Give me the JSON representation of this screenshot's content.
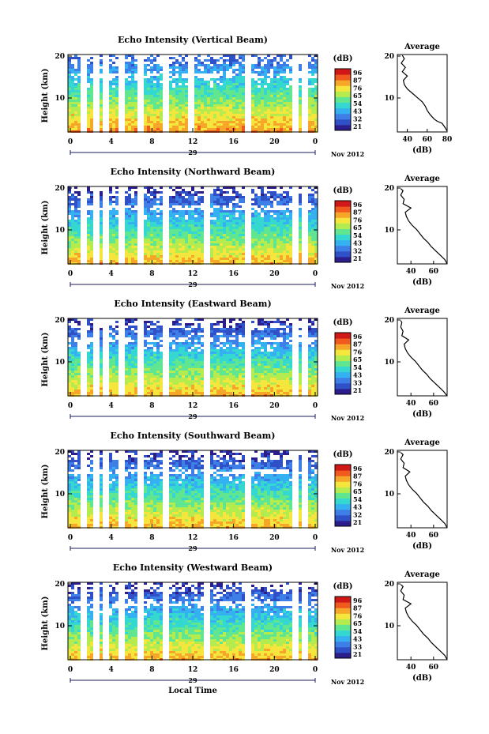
{
  "chart_data": [
    {
      "type": "heatmap",
      "title": "Echo Intensity (Vertical Beam)",
      "ylabel": "Height (km)",
      "colorbar": {
        "unit": "(dB)",
        "ticks": [
          "96",
          "87",
          "76",
          "65",
          "54",
          "43",
          "32",
          "21"
        ]
      },
      "x_ticks": [
        "0",
        "4",
        "8",
        "12",
        "16",
        "20",
        "0"
      ],
      "y_ticks": [
        "20",
        "10"
      ],
      "date_day": "29",
      "date_month": "Nov 2012",
      "profile": {
        "title": "Average",
        "xlabel": "(dB)",
        "x_ticks": [
          "40",
          "60",
          "80"
        ],
        "xlim": [
          30,
          80
        ],
        "y_ticks": [
          "20",
          "10"
        ],
        "ylim": [
          2,
          20
        ],
        "points": [
          [
            80,
            2.2
          ],
          [
            78,
            3
          ],
          [
            75,
            4
          ],
          [
            70,
            4.5
          ],
          [
            67,
            5
          ],
          [
            63,
            6
          ],
          [
            60,
            7
          ],
          [
            58,
            8
          ],
          [
            55,
            9
          ],
          [
            50,
            10
          ],
          [
            45,
            11
          ],
          [
            40,
            12
          ],
          [
            37,
            13
          ],
          [
            36,
            14
          ],
          [
            40,
            15
          ],
          [
            35,
            16
          ],
          [
            38,
            17
          ],
          [
            34,
            18
          ],
          [
            37,
            19
          ],
          [
            35,
            19.8
          ]
        ]
      }
    },
    {
      "type": "heatmap",
      "title": "Echo Intensity (Northward Beam)",
      "ylabel": "Height (km)",
      "colorbar": {
        "unit": "(dB)",
        "ticks": [
          "96",
          "87",
          "76",
          "65",
          "54",
          "43",
          "32",
          "21"
        ]
      },
      "x_ticks": [
        "0",
        "4",
        "8",
        "12",
        "16",
        "20",
        "0"
      ],
      "y_ticks": [
        "20",
        "10"
      ],
      "date_day": "29",
      "date_month": "Nov 2012",
      "profile": {
        "title": "Average",
        "xlabel": "(dB)",
        "x_ticks": [
          "40",
          "60"
        ],
        "xlim": [
          28,
          72
        ],
        "y_ticks": [
          "20",
          "10"
        ],
        "ylim": [
          2,
          20
        ],
        "points": [
          [
            72,
            2
          ],
          [
            70,
            3
          ],
          [
            66,
            4
          ],
          [
            62,
            5
          ],
          [
            58,
            6
          ],
          [
            55,
            7
          ],
          [
            51,
            8
          ],
          [
            48,
            9
          ],
          [
            45,
            10
          ],
          [
            41,
            11
          ],
          [
            38,
            12
          ],
          [
            36,
            13
          ],
          [
            35,
            14
          ],
          [
            40,
            15
          ],
          [
            33,
            16
          ],
          [
            34,
            17
          ],
          [
            31,
            18
          ],
          [
            33,
            19
          ],
          [
            31,
            19.5
          ]
        ]
      }
    },
    {
      "type": "heatmap",
      "title": "Echo Intensity (Eastward Beam)",
      "ylabel": "Height (km)",
      "colorbar": {
        "unit": "(dB)",
        "ticks": [
          "96",
          "87",
          "76",
          "65",
          "54",
          "43",
          "33",
          "21"
        ]
      },
      "x_ticks": [
        "0",
        "4",
        "8",
        "12",
        "16",
        "20",
        "0"
      ],
      "y_ticks": [
        "20",
        "10"
      ],
      "date_day": "29",
      "date_month": "Nov 2012",
      "profile": {
        "title": "Average",
        "xlabel": "(dB)",
        "x_ticks": [
          "40",
          "60"
        ],
        "xlim": [
          28,
          72
        ],
        "y_ticks": [
          "20",
          "10"
        ],
        "ylim": [
          2,
          20
        ],
        "points": [
          [
            72,
            2
          ],
          [
            69,
            3
          ],
          [
            65,
            4
          ],
          [
            61,
            5
          ],
          [
            57,
            6
          ],
          [
            54,
            7
          ],
          [
            50,
            8
          ],
          [
            47,
            9
          ],
          [
            44,
            10
          ],
          [
            40,
            11
          ],
          [
            37,
            12
          ],
          [
            35,
            13
          ],
          [
            34,
            14
          ],
          [
            38,
            15
          ],
          [
            32,
            16
          ],
          [
            33,
            17
          ],
          [
            31,
            18
          ],
          [
            32,
            19
          ],
          [
            31,
            19.5
          ]
        ]
      }
    },
    {
      "type": "heatmap",
      "title": "Echo Intensity (Southward Beam)",
      "ylabel": "Height (km)",
      "colorbar": {
        "unit": "(dB)",
        "ticks": [
          "96",
          "87",
          "76",
          "65",
          "54",
          "43",
          "32",
          "21"
        ]
      },
      "x_ticks": [
        "0",
        "4",
        "8",
        "12",
        "16",
        "20",
        "0"
      ],
      "y_ticks": [
        "20",
        "10"
      ],
      "date_day": "29",
      "date_month": "Nov 2012",
      "profile": {
        "title": "Average",
        "xlabel": "(dB)",
        "x_ticks": [
          "40",
          "60"
        ],
        "xlim": [
          28,
          72
        ],
        "y_ticks": [
          "20",
          "10"
        ],
        "ylim": [
          2,
          20
        ],
        "points": [
          [
            72,
            2
          ],
          [
            70,
            3
          ],
          [
            66,
            4
          ],
          [
            62,
            5
          ],
          [
            58,
            6
          ],
          [
            55,
            7
          ],
          [
            51,
            8
          ],
          [
            48,
            9
          ],
          [
            45,
            10
          ],
          [
            41,
            11
          ],
          [
            38,
            12
          ],
          [
            36,
            13
          ],
          [
            35,
            14
          ],
          [
            39,
            15
          ],
          [
            33,
            16
          ],
          [
            34,
            17
          ],
          [
            31,
            18
          ],
          [
            33,
            19
          ],
          [
            31,
            19.5
          ]
        ]
      }
    },
    {
      "type": "heatmap",
      "title": "Echo Intensity (Westward Beam)",
      "ylabel": "Height (km)",
      "xlabel": "Local Time",
      "colorbar": {
        "unit": "(dB)",
        "ticks": [
          "96",
          "87",
          "76",
          "65",
          "54",
          "43",
          "33",
          "21"
        ]
      },
      "x_ticks": [
        "0",
        "4",
        "8",
        "12",
        "16",
        "20",
        "0"
      ],
      "y_ticks": [
        "20",
        "10"
      ],
      "date_day": "29",
      "date_month": "Nov 2012",
      "profile": {
        "title": "Average",
        "xlabel": "(dB)",
        "x_ticks": [
          "40",
          "60"
        ],
        "xlim": [
          28,
          72
        ],
        "y_ticks": [
          "20",
          "10"
        ],
        "ylim": [
          2,
          20
        ],
        "points": [
          [
            72,
            2
          ],
          [
            70,
            3
          ],
          [
            66,
            4
          ],
          [
            62,
            5
          ],
          [
            58,
            6
          ],
          [
            55,
            7
          ],
          [
            51,
            8
          ],
          [
            48,
            9
          ],
          [
            45,
            10
          ],
          [
            41,
            11
          ],
          [
            38,
            12
          ],
          [
            36,
            13
          ],
          [
            35,
            14
          ],
          [
            40,
            15
          ],
          [
            33,
            16
          ],
          [
            34,
            17
          ],
          [
            31,
            18
          ],
          [
            33,
            19
          ],
          [
            31,
            19.5
          ]
        ]
      }
    }
  ],
  "colors": {
    "colormap": [
      "#2b1e8c",
      "#3050c8",
      "#3d7fe6",
      "#35b0f0",
      "#35d8d0",
      "#60e690",
      "#b4ec50",
      "#f4e63c",
      "#f6a72a",
      "#f05a1e",
      "#d01818"
    ],
    "gap": "#ffffff",
    "axis": "#000000",
    "date_axis": "#1a1a5a"
  }
}
